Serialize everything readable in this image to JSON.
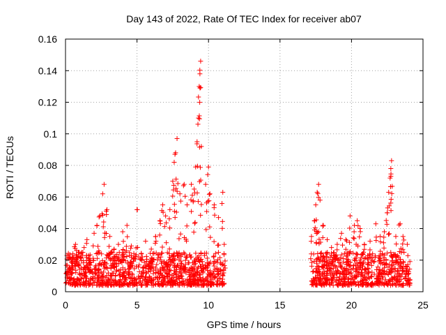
{
  "chart_data": {
    "type": "scatter",
    "title": "Day 143 of 2022, Rate Of TEC Index for receiver ab07",
    "xlabel": "GPS time / hours",
    "ylabel": "ROTI / TECUs",
    "xlim": [
      0,
      25
    ],
    "ylim": [
      0,
      0.16
    ],
    "x_ticks": [
      0,
      5,
      10,
      15,
      20,
      25
    ],
    "y_ticks": [
      0,
      0.02,
      0.04,
      0.06,
      0.08,
      0.1,
      0.12,
      0.14,
      0.16
    ],
    "x_tick_labels": [
      "0",
      "5",
      "10",
      "15",
      "20",
      "25"
    ],
    "y_tick_labels": [
      "0",
      "0.02",
      "0.04",
      "0.06",
      "0.08",
      "0.1",
      "0.12",
      "0.14",
      "0.16"
    ],
    "grid": true,
    "marker": "plus",
    "color": "#ff0000",
    "series": [
      {
        "points": [
          [
            0.1,
            0.012
          ],
          [
            0.3,
            0.022
          ],
          [
            0.5,
            0.018
          ],
          [
            0.7,
            0.03
          ],
          [
            0.9,
            0.025
          ],
          [
            1.1,
            0.015
          ],
          [
            1.3,
            0.028
          ],
          [
            1.5,
            0.033
          ],
          [
            1.7,
            0.02
          ],
          [
            2.0,
            0.037
          ],
          [
            2.2,
            0.042
          ],
          [
            2.4,
            0.048
          ],
          [
            2.6,
            0.062
          ],
          [
            2.7,
            0.068
          ],
          [
            2.9,
            0.052
          ],
          [
            3.1,
            0.035
          ],
          [
            3.4,
            0.027
          ],
          [
            3.7,
            0.03
          ],
          [
            4.0,
            0.038
          ],
          [
            4.3,
            0.042
          ],
          [
            4.6,
            0.029
          ],
          [
            5.0,
            0.052
          ],
          [
            5.3,
            0.024
          ],
          [
            5.6,
            0.032
          ],
          [
            6.0,
            0.027
          ],
          [
            6.3,
            0.035
          ],
          [
            6.6,
            0.045
          ],
          [
            6.8,
            0.055
          ],
          [
            7.0,
            0.048
          ],
          [
            7.3,
            0.052
          ],
          [
            7.5,
            0.07
          ],
          [
            7.6,
            0.082
          ],
          [
            7.7,
            0.088
          ],
          [
            7.8,
            0.097
          ],
          [
            8.0,
            0.062
          ],
          [
            8.3,
            0.068
          ],
          [
            8.5,
            0.055
          ],
          [
            8.8,
            0.068
          ],
          [
            9.0,
            0.065
          ],
          [
            9.1,
            0.079
          ],
          [
            9.2,
            0.095
          ],
          [
            9.3,
            0.11
          ],
          [
            9.35,
            0.13
          ],
          [
            9.4,
            0.138
          ],
          [
            9.45,
            0.146
          ],
          [
            9.5,
            0.092
          ],
          [
            9.8,
            0.068
          ],
          [
            10.0,
            0.079
          ],
          [
            10.1,
            0.062
          ],
          [
            10.4,
            0.055
          ],
          [
            10.7,
            0.047
          ],
          [
            11.0,
            0.063
          ],
          [
            11.1,
            0.03
          ],
          [
            17.2,
            0.035
          ],
          [
            17.4,
            0.045
          ],
          [
            17.5,
            0.055
          ],
          [
            17.6,
            0.063
          ],
          [
            17.7,
            0.068
          ],
          [
            17.8,
            0.058
          ],
          [
            18.0,
            0.042
          ],
          [
            18.3,
            0.033
          ],
          [
            18.6,
            0.028
          ],
          [
            19.0,
            0.03
          ],
          [
            19.3,
            0.037
          ],
          [
            19.6,
            0.033
          ],
          [
            19.9,
            0.048
          ],
          [
            20.2,
            0.042
          ],
          [
            20.4,
            0.045
          ],
          [
            20.6,
            0.04
          ],
          [
            20.9,
            0.03
          ],
          [
            21.3,
            0.032
          ],
          [
            21.7,
            0.043
          ],
          [
            22.0,
            0.035
          ],
          [
            22.3,
            0.038
          ],
          [
            22.5,
            0.05
          ],
          [
            22.6,
            0.063
          ],
          [
            22.7,
            0.072
          ],
          [
            22.75,
            0.078
          ],
          [
            22.8,
            0.083
          ],
          [
            23.1,
            0.035
          ],
          [
            23.4,
            0.043
          ],
          [
            23.6,
            0.035
          ],
          [
            23.9,
            0.03
          ]
        ],
        "noise_band": {
          "description": "dense bulk of samples",
          "segments": [
            [
              0,
              11.1
            ],
            [
              17.2,
              24.1
            ]
          ],
          "y_range": [
            0.004,
            0.025
          ]
        }
      }
    ]
  }
}
